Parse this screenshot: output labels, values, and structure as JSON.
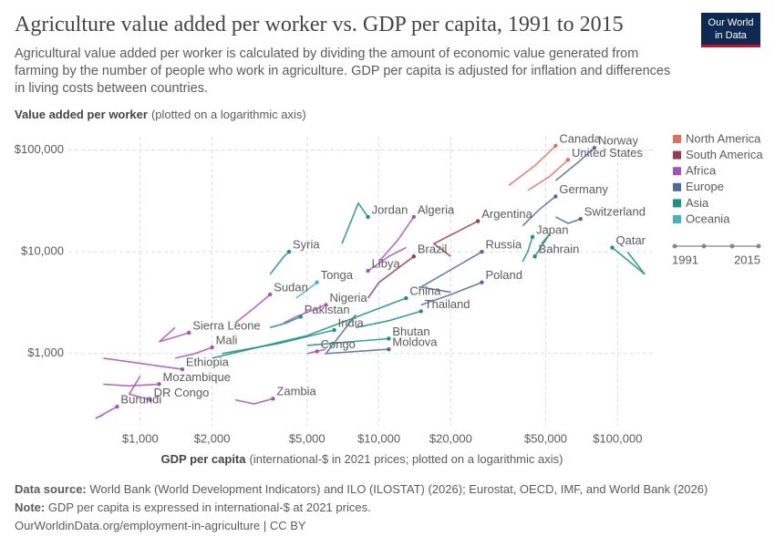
{
  "header": {
    "title": "Agriculture value added per worker vs. GDP per capita, 1991 to 2015",
    "subtitle": "Agricultural value added per worker is calculated by dividing the amount of economic value generated from farming by the number of people who work in agriculture. GDP per capita is adjusted for inflation and differences in living costs between countries.",
    "logo": [
      "Our World",
      "in Data"
    ]
  },
  "chart_data": {
    "type": "line",
    "y_label": "Value added per worker",
    "y_label_note": "(plotted on a logarithmic axis)",
    "x_label": "GDP per capita",
    "x_label_note": "(international-$ in 2021 prices; plotted on a logarithmic axis)",
    "log_x": true,
    "log_y": true,
    "grid": true,
    "xlim": [
      500,
      143000
    ],
    "ylim": [
      195,
      135000
    ],
    "xticks": [
      {
        "value": 1000,
        "label": "$1,000"
      },
      {
        "value": 2000,
        "label": "$2,000"
      },
      {
        "value": 5000,
        "label": "$5,000"
      },
      {
        "value": 10000,
        "label": "$10,000"
      },
      {
        "value": 20000,
        "label": "$20,000"
      },
      {
        "value": 50000,
        "label": "$50,000"
      },
      {
        "value": 100000,
        "label": "$100,000"
      }
    ],
    "yticks": [
      {
        "value": 1000,
        "label": "$1,000"
      },
      {
        "value": 10000,
        "label": "$10,000"
      },
      {
        "value": 100000,
        "label": "$100,000"
      }
    ],
    "legend_position": "right",
    "regions": [
      {
        "name": "North America",
        "color": "#e56e5a"
      },
      {
        "name": "South America",
        "color": "#9a3b4f"
      },
      {
        "name": "Africa",
        "color": "#a652ba"
      },
      {
        "name": "Europe",
        "color": "#4c6a9c"
      },
      {
        "name": "Asia",
        "color": "#18917e"
      },
      {
        "name": "Oceania",
        "color": "#3fb3c4"
      }
    ],
    "time_range": [
      1991,
      2015
    ],
    "series": [
      {
        "name": "Canada",
        "region": "North America",
        "x": [
          35000,
          45000,
          55000
        ],
        "values": [
          45000,
          70000,
          110000
        ]
      },
      {
        "name": "United States",
        "region": "North America",
        "x": [
          42000,
          52000,
          62000
        ],
        "values": [
          40000,
          55000,
          80000
        ]
      },
      {
        "name": "Norway",
        "region": "Europe",
        "x": [
          55000,
          68000,
          80000
        ],
        "values": [
          50000,
          75000,
          105000
        ]
      },
      {
        "name": "Germany",
        "region": "Europe",
        "x": [
          40000,
          47000,
          55000
        ],
        "values": [
          18000,
          26000,
          35000
        ]
      },
      {
        "name": "Switzerland",
        "region": "Europe",
        "x": [
          55000,
          62000,
          70000
        ],
        "values": [
          22000,
          19000,
          21000
        ]
      },
      {
        "name": "Argentina",
        "region": "South America",
        "x": [
          20000,
          17000,
          26000
        ],
        "values": [
          9000,
          12000,
          20000
        ]
      },
      {
        "name": "Algeria",
        "region": "Africa",
        "x": [
          10000,
          12000,
          14000
        ],
        "values": [
          8000,
          13000,
          22000
        ]
      },
      {
        "name": "Jordan",
        "region": "Asia",
        "x": [
          7000,
          8200,
          9000
        ],
        "values": [
          12000,
          30000,
          22000
        ]
      },
      {
        "name": "Russia",
        "region": "Europe",
        "x": [
          20000,
          15000,
          27000
        ],
        "values": [
          4000,
          4500,
          10000
        ]
      },
      {
        "name": "Japan",
        "region": "Asia",
        "x": [
          40000,
          42000,
          44000
        ],
        "values": [
          8000,
          10000,
          14000
        ]
      },
      {
        "name": "Bahrain",
        "region": "Asia",
        "x": [
          48000,
          52000,
          45000
        ],
        "values": [
          12000,
          15000,
          9000
        ]
      },
      {
        "name": "Qatar",
        "region": "Asia",
        "x": [
          110000,
          130000,
          95000
        ],
        "values": [
          10000,
          6000,
          11000
        ]
      },
      {
        "name": "Syria",
        "region": "Asia",
        "x": [
          3500,
          4000,
          4200
        ],
        "values": [
          6000,
          9000,
          10000
        ]
      },
      {
        "name": "Brazil",
        "region": "South America",
        "x": [
          9000,
          10000,
          14000
        ],
        "values": [
          3500,
          5000,
          9000
        ]
      },
      {
        "name": "Libya",
        "region": "Africa",
        "x": [
          13000,
          11000,
          9000
        ],
        "values": [
          11000,
          9000,
          6500
        ]
      },
      {
        "name": "Tonga",
        "region": "Oceania",
        "x": [
          4500,
          5000,
          5500
        ],
        "values": [
          3500,
          4200,
          5000
        ]
      },
      {
        "name": "Poland",
        "region": "Europe",
        "x": [
          15000,
          20000,
          27000
        ],
        "values": [
          3000,
          3800,
          5000
        ]
      },
      {
        "name": "China",
        "region": "Asia",
        "x": [
          2000,
          5000,
          13000
        ],
        "values": [
          900,
          1500,
          3500
        ]
      },
      {
        "name": "Sudan",
        "region": "Africa",
        "x": [
          2500,
          3000,
          3500
        ],
        "values": [
          2000,
          2800,
          3800
        ]
      },
      {
        "name": "Pakistan",
        "region": "Asia",
        "x": [
          3500,
          4100,
          4700
        ],
        "values": [
          1800,
          2000,
          2300
        ]
      },
      {
        "name": "Nigeria",
        "region": "Africa",
        "x": [
          4000,
          4500,
          6000
        ],
        "values": [
          2000,
          2300,
          3000
        ]
      },
      {
        "name": "Thailand",
        "region": "Asia",
        "x": [
          8000,
          11000,
          15000
        ],
        "values": [
          1800,
          2100,
          2600
        ]
      },
      {
        "name": "Sierra Leone",
        "region": "Africa",
        "x": [
          1400,
          1200,
          1600
        ],
        "values": [
          1800,
          1300,
          1600
        ]
      },
      {
        "name": "India",
        "region": "Asia",
        "x": [
          2200,
          3800,
          6500
        ],
        "values": [
          1000,
          1250,
          1700
        ]
      },
      {
        "name": "Bhutan",
        "region": "Asia",
        "x": [
          5000,
          7500,
          11000
        ],
        "values": [
          1200,
          1300,
          1400
        ]
      },
      {
        "name": "Mali",
        "region": "Africa",
        "x": [
          1400,
          1700,
          2000
        ],
        "values": [
          900,
          1000,
          1150
        ]
      },
      {
        "name": "Congo",
        "region": "Africa",
        "x": [
          5000,
          6000,
          5500
        ],
        "values": [
          1000,
          1100,
          1050
        ]
      },
      {
        "name": "Moldova",
        "region": "Europe",
        "x": [
          8000,
          6000,
          11000
        ],
        "values": [
          2400,
          1000,
          1100
        ]
      },
      {
        "name": "Ethiopia",
        "region": "Africa",
        "x": [
          700,
          1000,
          1500
        ],
        "values": [
          900,
          800,
          700
        ]
      },
      {
        "name": "Mozambique",
        "region": "Africa",
        "x": [
          700,
          900,
          1200
        ],
        "values": [
          500,
          480,
          500
        ]
      },
      {
        "name": "DR Congo",
        "region": "Africa",
        "x": [
          1000,
          900,
          1100
        ],
        "values": [
          600,
          400,
          350
        ]
      },
      {
        "name": "Zambia",
        "region": "Africa",
        "x": [
          2500,
          3000,
          3600
        ],
        "values": [
          350,
          320,
          360
        ]
      },
      {
        "name": "Burundi",
        "region": "Africa",
        "x": [
          700,
          650,
          800
        ],
        "values": [
          250,
          230,
          300
        ]
      }
    ]
  },
  "footer": {
    "source_label": "Data source:",
    "source": "World Bank (World Development Indicators) and ILO (ILOSTAT) (2026); Eurostat, OECD, IMF, and World Bank (2026)",
    "note_label": "Note:",
    "note": "GDP per capita is expressed in international-$ at 2021 prices.",
    "url": "OurWorldinData.org/employment-in-agriculture | CC BY"
  }
}
